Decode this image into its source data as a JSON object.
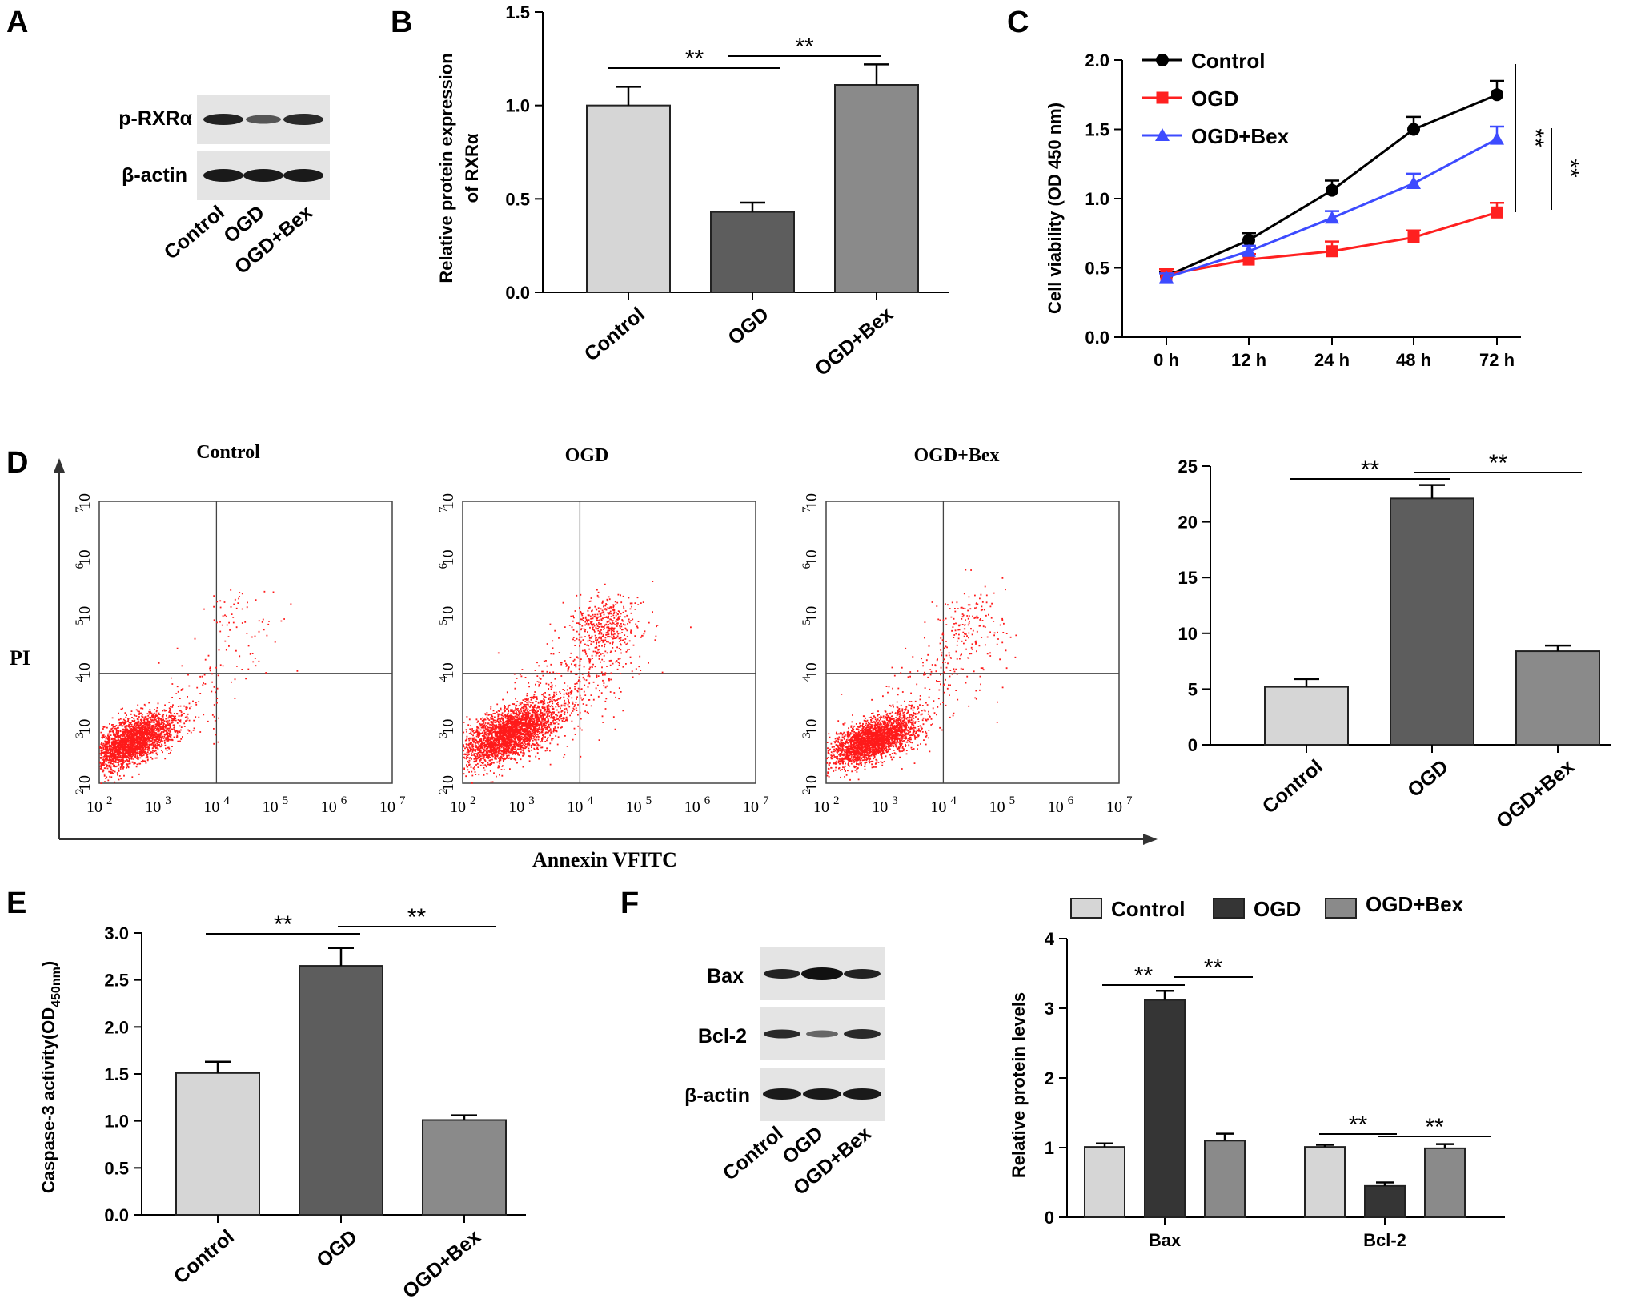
{
  "panel_labels": [
    "A",
    "B",
    "C",
    "D",
    "E",
    "F"
  ],
  "colors": {
    "control_bar": "#d6d6d6",
    "ogd_bar": "#5d5d5d",
    "bex_bar": "#8a8a8a",
    "f_ogd_bar": "#353535",
    "line_control": "#000000",
    "line_ogd": "#ff2020",
    "line_bex": "#3d4bff",
    "dots": "#ff1a1a"
  },
  "blot_a": {
    "rows": [
      "p-RXRα",
      "β-actin"
    ],
    "lanes": [
      "Control",
      "OGD",
      "OGD+Bex"
    ]
  },
  "blot_f": {
    "rows": [
      "Bax",
      "Bcl-2",
      "β-actin"
    ],
    "lanes": [
      "Control",
      "OGD",
      "OGD+Bex"
    ]
  },
  "flow": {
    "titles": [
      "Control",
      "OGD",
      "OGD+Bex"
    ],
    "ylabel": "PI",
    "xlabel": "Annexin  VFITC",
    "tick_base": "10",
    "tick_powers": [
      "2",
      "3",
      "4",
      "5",
      "6",
      "7"
    ]
  },
  "chart_data": [
    {
      "id": "B",
      "type": "bar",
      "categories": [
        "Control",
        "OGD",
        "OGD+Bex"
      ],
      "values": [
        1.0,
        0.43,
        1.11
      ],
      "errors": [
        0.1,
        0.05,
        0.11
      ],
      "ylabel_line1": "Relative protein expression",
      "ylabel_line2": "of RXRα",
      "ylim": [
        0,
        1.5
      ],
      "yticks": [
        "0.0",
        "0.5",
        "1.0",
        "1.5"
      ],
      "significance": [
        {
          "from": 0,
          "to": 1,
          "label": "**"
        },
        {
          "from": 1,
          "to": 2,
          "label": "**"
        }
      ]
    },
    {
      "id": "C",
      "type": "line",
      "x": [
        "0 h",
        "12 h",
        "24 h",
        "48 h",
        "72 h"
      ],
      "ylabel": "Cell viability (OD 450 nm)",
      "ylim": [
        0,
        2.0
      ],
      "yticks": [
        "0.0",
        "0.5",
        "1.0",
        "1.5",
        "2.0"
      ],
      "legend": "top-left",
      "series": [
        {
          "name": "Control",
          "values": [
            0.44,
            0.7,
            1.06,
            1.5,
            1.75
          ],
          "errors": [
            0.03,
            0.05,
            0.07,
            0.09,
            0.1
          ]
        },
        {
          "name": "OGD",
          "values": [
            0.45,
            0.56,
            0.62,
            0.72,
            0.9
          ],
          "errors": [
            0.04,
            0.04,
            0.07,
            0.05,
            0.07
          ]
        },
        {
          "name": "OGD+Bex",
          "values": [
            0.43,
            0.62,
            0.86,
            1.11,
            1.43
          ],
          "errors": [
            0.03,
            0.04,
            0.05,
            0.07,
            0.09
          ]
        }
      ],
      "significance": [
        "**",
        "**"
      ]
    },
    {
      "id": "D",
      "type": "bar",
      "categories": [
        "Control",
        "OGD",
        "OGD+Bex"
      ],
      "values": [
        5.2,
        22.1,
        8.4
      ],
      "errors": [
        0.7,
        1.2,
        0.5
      ],
      "ylim": [
        0,
        25
      ],
      "yticks": [
        "0",
        "5",
        "10",
        "15",
        "20",
        "25"
      ],
      "significance": [
        {
          "from": 0,
          "to": 1,
          "label": "**"
        },
        {
          "from": 1,
          "to": 2,
          "label": "**"
        }
      ]
    },
    {
      "id": "E",
      "type": "bar",
      "categories": [
        "Control",
        "OGD",
        "OGD+Bex"
      ],
      "values": [
        1.51,
        2.65,
        1.01
      ],
      "errors": [
        0.12,
        0.19,
        0.05
      ],
      "ylabel_main": "Caspase-3 activity(OD",
      "ylabel_sub": "450nm",
      "ylabel_end": ")",
      "ylim": [
        0,
        3.0
      ],
      "yticks": [
        "0.0",
        "0.5",
        "1.0",
        "1.5",
        "2.0",
        "2.5",
        "3.0"
      ],
      "significance": [
        {
          "from": 0,
          "to": 1,
          "label": "**"
        },
        {
          "from": 1,
          "to": 2,
          "label": "**"
        }
      ]
    },
    {
      "id": "F",
      "type": "bar",
      "categories": [
        "Bax",
        "Bcl-2"
      ],
      "ylabel": "Relative protein levels",
      "ylim": [
        0,
        4
      ],
      "yticks": [
        "0",
        "1",
        "2",
        "3",
        "4"
      ],
      "legend": "top",
      "series": [
        {
          "name": "Control",
          "values": [
            1.01,
            1.01
          ],
          "errors": [
            0.05,
            0.03
          ]
        },
        {
          "name": "OGD",
          "values": [
            3.12,
            0.45
          ],
          "errors": [
            0.13,
            0.05
          ]
        },
        {
          "name": "OGD+Bex",
          "values": [
            1.1,
            0.99
          ],
          "errors": [
            0.1,
            0.06
          ]
        }
      ],
      "significance": [
        "**",
        "**",
        "**",
        "**"
      ]
    }
  ]
}
